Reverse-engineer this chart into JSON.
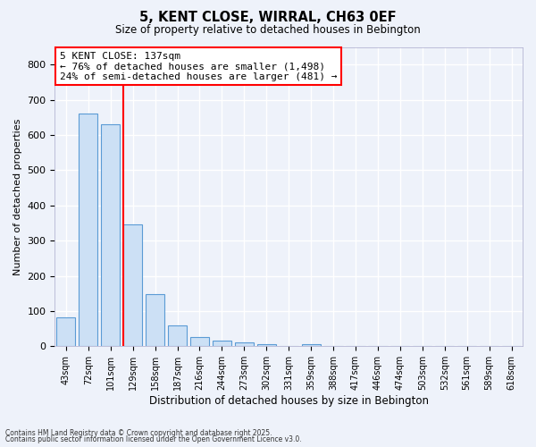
{
  "title1": "5, KENT CLOSE, WIRRAL, CH63 0EF",
  "title2": "Size of property relative to detached houses in Bebington",
  "xlabel": "Distribution of detached houses by size in Bebington",
  "ylabel": "Number of detached properties",
  "bar_labels": [
    "43sqm",
    "72sqm",
    "101sqm",
    "129sqm",
    "158sqm",
    "187sqm",
    "216sqm",
    "244sqm",
    "273sqm",
    "302sqm",
    "331sqm",
    "359sqm",
    "388sqm",
    "417sqm",
    "446sqm",
    "474sqm",
    "503sqm",
    "532sqm",
    "561sqm",
    "589sqm",
    "618sqm"
  ],
  "bar_values": [
    82,
    660,
    630,
    347,
    147,
    58,
    27,
    17,
    10,
    5,
    0,
    7,
    0,
    0,
    0,
    0,
    0,
    0,
    0,
    0,
    0
  ],
  "bar_color": "#cce0f5",
  "bar_edgecolor": "#5b9bd5",
  "annotation_line1": "5 KENT CLOSE: 137sqm",
  "annotation_line2": "← 76% of detached houses are smaller (1,498)",
  "annotation_line3": "24% of semi-detached houses are larger (481) →",
  "annotation_box_color": "white",
  "annotation_box_edgecolor": "red",
  "vline_color": "red",
  "ylim": [
    0,
    850
  ],
  "yticks": [
    0,
    100,
    200,
    300,
    400,
    500,
    600,
    700,
    800
  ],
  "background_color": "#eef2fa",
  "grid_color": "white",
  "footer1": "Contains HM Land Registry data © Crown copyright and database right 2025.",
  "footer2": "Contains public sector information licensed under the Open Government Licence v3.0."
}
